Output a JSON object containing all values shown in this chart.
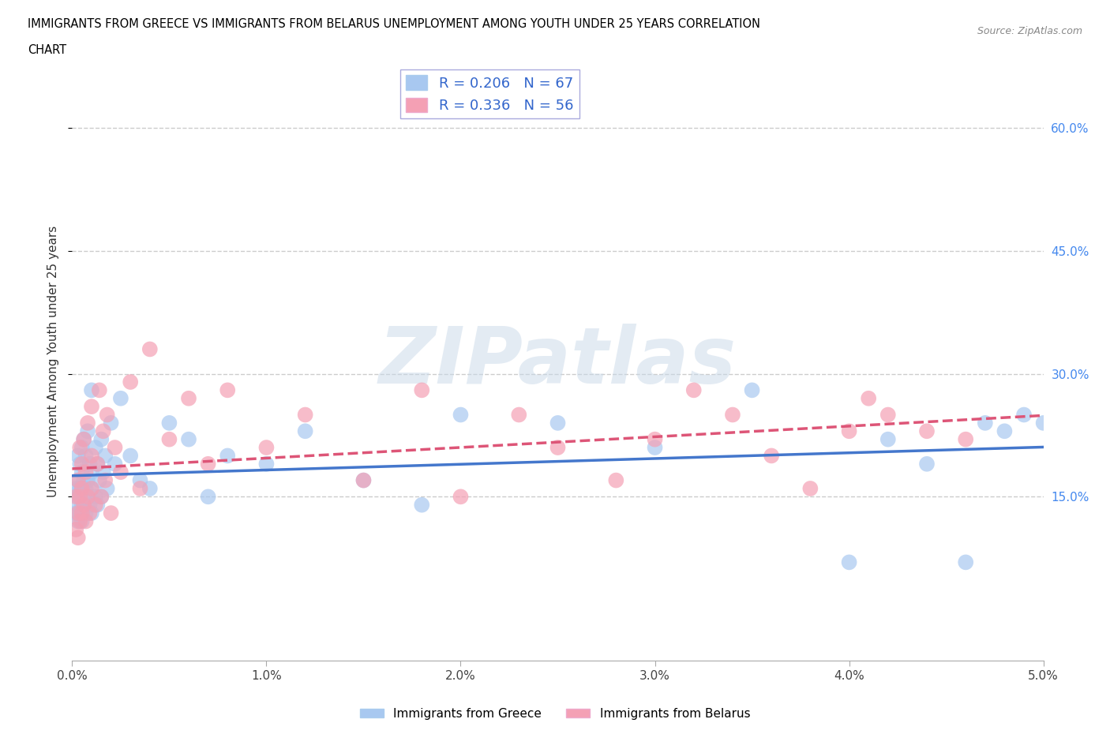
{
  "title_line1": "IMMIGRANTS FROM GREECE VS IMMIGRANTS FROM BELARUS UNEMPLOYMENT AMONG YOUTH UNDER 25 YEARS CORRELATION",
  "title_line2": "CHART",
  "source": "Source: ZipAtlas.com",
  "ylabel": "Unemployment Among Youth under 25 years",
  "xlim": [
    0.0,
    0.05
  ],
  "ylim": [
    -0.05,
    0.68
  ],
  "xticks": [
    0.0,
    0.01,
    0.02,
    0.03,
    0.04,
    0.05
  ],
  "xticklabels": [
    "0.0%",
    "1.0%",
    "2.0%",
    "3.0%",
    "4.0%",
    "5.0%"
  ],
  "ytick_positions": [
    0.15,
    0.3,
    0.45,
    0.6
  ],
  "ytick_labels": [
    "15.0%",
    "30.0%",
    "45.0%",
    "60.0%"
  ],
  "greece_color": "#a8c8f0",
  "belarus_color": "#f4a0b4",
  "greece_R": 0.206,
  "greece_N": 67,
  "belarus_R": 0.336,
  "belarus_N": 56,
  "greece_line_color": "#4477cc",
  "belarus_line_color": "#dd5577",
  "legend_label_greece": "Immigrants from Greece",
  "legend_label_belarus": "Immigrants from Belarus",
  "watermark": "ZIPatlas",
  "background_color": "#ffffff",
  "grid_color": "#cccccc",
  "greece_x": [
    0.0002,
    0.0002,
    0.0003,
    0.0003,
    0.0003,
    0.0003,
    0.0003,
    0.0004,
    0.0004,
    0.0004,
    0.0004,
    0.0005,
    0.0005,
    0.0005,
    0.0005,
    0.0005,
    0.0006,
    0.0006,
    0.0006,
    0.0007,
    0.0007,
    0.0007,
    0.0008,
    0.0008,
    0.0008,
    0.0009,
    0.0009,
    0.001,
    0.001,
    0.001,
    0.001,
    0.0012,
    0.0012,
    0.0013,
    0.0013,
    0.0014,
    0.0015,
    0.0015,
    0.0016,
    0.0017,
    0.0018,
    0.002,
    0.0022,
    0.0025,
    0.003,
    0.0035,
    0.004,
    0.005,
    0.006,
    0.007,
    0.008,
    0.01,
    0.012,
    0.015,
    0.018,
    0.02,
    0.025,
    0.03,
    0.035,
    0.04,
    0.042,
    0.044,
    0.046,
    0.047,
    0.048,
    0.049,
    0.05
  ],
  "greece_y": [
    0.13,
    0.16,
    0.12,
    0.14,
    0.15,
    0.17,
    0.2,
    0.13,
    0.15,
    0.16,
    0.19,
    0.12,
    0.14,
    0.16,
    0.18,
    0.21,
    0.14,
    0.17,
    0.22,
    0.13,
    0.16,
    0.2,
    0.15,
    0.17,
    0.23,
    0.14,
    0.19,
    0.13,
    0.16,
    0.18,
    0.28,
    0.15,
    0.21,
    0.14,
    0.19,
    0.17,
    0.15,
    0.22,
    0.18,
    0.2,
    0.16,
    0.24,
    0.19,
    0.27,
    0.2,
    0.17,
    0.16,
    0.24,
    0.22,
    0.15,
    0.2,
    0.19,
    0.23,
    0.17,
    0.14,
    0.25,
    0.24,
    0.21,
    0.28,
    0.07,
    0.22,
    0.19,
    0.07,
    0.24,
    0.23,
    0.25,
    0.24
  ],
  "belarus_x": [
    0.0002,
    0.0002,
    0.0003,
    0.0003,
    0.0003,
    0.0004,
    0.0004,
    0.0004,
    0.0005,
    0.0005,
    0.0005,
    0.0006,
    0.0006,
    0.0007,
    0.0007,
    0.0008,
    0.0008,
    0.0009,
    0.001,
    0.001,
    0.001,
    0.0012,
    0.0013,
    0.0014,
    0.0015,
    0.0016,
    0.0017,
    0.0018,
    0.002,
    0.0022,
    0.0025,
    0.003,
    0.0035,
    0.004,
    0.005,
    0.006,
    0.007,
    0.008,
    0.01,
    0.012,
    0.015,
    0.018,
    0.02,
    0.023,
    0.025,
    0.028,
    0.03,
    0.032,
    0.034,
    0.036,
    0.038,
    0.04,
    0.041,
    0.042,
    0.044,
    0.046
  ],
  "belarus_y": [
    0.11,
    0.15,
    0.1,
    0.13,
    0.17,
    0.12,
    0.15,
    0.21,
    0.13,
    0.16,
    0.19,
    0.14,
    0.22,
    0.12,
    0.18,
    0.15,
    0.24,
    0.13,
    0.16,
    0.2,
    0.26,
    0.14,
    0.19,
    0.28,
    0.15,
    0.23,
    0.17,
    0.25,
    0.13,
    0.21,
    0.18,
    0.29,
    0.16,
    0.33,
    0.22,
    0.27,
    0.19,
    0.28,
    0.21,
    0.25,
    0.17,
    0.28,
    0.15,
    0.25,
    0.21,
    0.17,
    0.22,
    0.28,
    0.25,
    0.2,
    0.16,
    0.23,
    0.27,
    0.25,
    0.23,
    0.22
  ]
}
